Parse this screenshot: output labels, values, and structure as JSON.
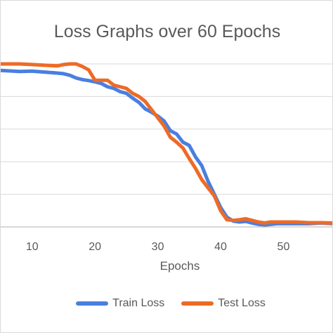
{
  "chart_data": {
    "type": "line",
    "title": "Loss Graphs over 60 Epochs",
    "xlabel": "Epochs",
    "ylabel": "",
    "xlim": [
      5,
      58
    ],
    "ylim": [
      0,
      5
    ],
    "x_ticks": [
      10,
      20,
      30,
      40,
      50
    ],
    "x_tick_labels": [
      "10",
      "20",
      "30",
      "40",
      "50"
    ],
    "grid": true,
    "legend_position": "bottom",
    "series": [
      {
        "name": "Train Loss",
        "color": "#4a7fe0",
        "x": [
          5,
          7,
          8,
          10,
          12,
          14,
          15,
          16,
          17,
          18,
          19,
          20,
          21,
          22,
          23,
          24,
          25,
          26,
          27,
          28,
          29,
          30,
          31,
          32,
          33,
          34,
          35,
          36,
          37,
          38,
          39,
          40,
          41,
          42,
          43,
          44,
          45,
          46,
          47,
          48,
          49,
          50,
          52,
          54,
          56,
          58
        ],
        "values": [
          4.8,
          4.78,
          4.77,
          4.78,
          4.75,
          4.72,
          4.7,
          4.65,
          4.57,
          4.52,
          4.49,
          4.45,
          4.4,
          4.3,
          4.25,
          4.15,
          4.1,
          3.95,
          3.82,
          3.62,
          3.52,
          3.4,
          3.25,
          2.95,
          2.85,
          2.6,
          2.5,
          2.15,
          1.88,
          1.4,
          1.0,
          0.6,
          0.3,
          0.18,
          0.15,
          0.17,
          0.12,
          0.08,
          0.06,
          0.08,
          0.1,
          0.1,
          0.1,
          0.1,
          0.12,
          0.1
        ]
      },
      {
        "name": "Test Loss",
        "color": "#ed6b26",
        "x": [
          5,
          7,
          8,
          10,
          12,
          14,
          15,
          16,
          17,
          18,
          19,
          20,
          21,
          22,
          23,
          24,
          25,
          26,
          27,
          28,
          29,
          30,
          31,
          32,
          33,
          34,
          35,
          36,
          37,
          38,
          39,
          40,
          41,
          42,
          43,
          44,
          45,
          46,
          47,
          48,
          49,
          50,
          52,
          54,
          56,
          58
        ],
        "values": [
          5.0,
          5.0,
          5.0,
          4.98,
          4.96,
          4.94,
          4.98,
          5.0,
          5.0,
          4.92,
          4.82,
          4.5,
          4.5,
          4.5,
          4.35,
          4.3,
          4.25,
          4.1,
          4.0,
          3.85,
          3.6,
          3.35,
          3.1,
          2.75,
          2.6,
          2.42,
          2.1,
          1.8,
          1.45,
          1.2,
          0.95,
          0.5,
          0.22,
          0.2,
          0.22,
          0.25,
          0.2,
          0.15,
          0.12,
          0.15,
          0.15,
          0.15,
          0.15,
          0.13,
          0.13,
          0.12
        ]
      }
    ]
  }
}
